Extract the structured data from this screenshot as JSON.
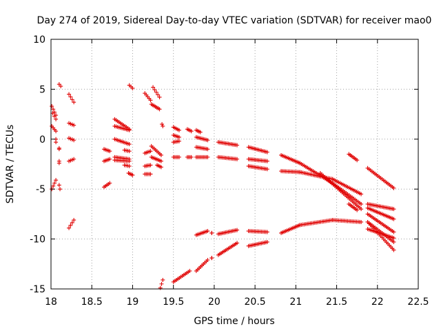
{
  "chart_data": {
    "type": "scatter",
    "title": "Day 274 of 2019, Sidereal Day-to-day VTEC variation (SDTVAR) for receiver mao0",
    "xlabel": "GPS time / hours",
    "ylabel": "SDTVAR / TECUs",
    "xlim": [
      18,
      22.5
    ],
    "ylim": [
      -15,
      10
    ],
    "xticks": [
      "18",
      "18.5",
      "19",
      "19.5",
      "20",
      "20.5",
      "21",
      "21.5",
      "22",
      "22.5"
    ],
    "yticks": [
      "-15",
      "-10",
      "-5",
      "0",
      "5",
      "10"
    ],
    "grid": true,
    "marker": "plus",
    "color": "#e00000",
    "tracks": [
      {
        "x0": 18.01,
        "x1": 18.06,
        "y0": 3.3,
        "y1": 2.4
      },
      {
        "x0": 18.02,
        "x1": 18.06,
        "y0": 2.6,
        "y1": 2.0
      },
      {
        "x0": 18.01,
        "x1": 18.06,
        "y0": 1.3,
        "y1": 0.8
      },
      {
        "x0": 18.01,
        "x1": 18.06,
        "y0": -5.0,
        "y1": -4.1
      },
      {
        "x0": 18.06,
        "x1": 18.06,
        "y0": -0.3,
        "y1": 0.0
      },
      {
        "x0": 18.1,
        "x1": 18.12,
        "y0": 5.5,
        "y1": 5.3
      },
      {
        "x0": 18.1,
        "x1": 18.1,
        "y0": -0.9,
        "y1": -1.0
      },
      {
        "x0": 18.1,
        "x1": 18.1,
        "y0": -2.2,
        "y1": -2.4
      },
      {
        "x0": 18.1,
        "x1": 18.11,
        "y0": -4.6,
        "y1": -5.0
      },
      {
        "x0": 18.22,
        "x1": 18.28,
        "y0": 4.5,
        "y1": 3.7
      },
      {
        "x0": 18.22,
        "x1": 18.28,
        "y0": 1.6,
        "y1": 1.4
      },
      {
        "x0": 18.22,
        "x1": 18.28,
        "y0": 0.1,
        "y1": -0.1
      },
      {
        "x0": 18.22,
        "x1": 18.28,
        "y0": -2.2,
        "y1": -2.0
      },
      {
        "x0": 18.22,
        "x1": 18.28,
        "y0": -8.9,
        "y1": -8.1
      },
      {
        "x0": 18.65,
        "x1": 18.72,
        "y0": -4.8,
        "y1": -4.4
      },
      {
        "x0": 18.65,
        "x1": 18.72,
        "y0": -1.0,
        "y1": -1.2
      },
      {
        "x0": 18.65,
        "x1": 18.72,
        "y0": -2.2,
        "y1": -2.0
      },
      {
        "x0": 18.78,
        "x1": 18.96,
        "y0": 2.0,
        "y1": 1.0
      },
      {
        "x0": 18.78,
        "x1": 18.96,
        "y0": 1.3,
        "y1": 0.9
      },
      {
        "x0": 18.78,
        "x1": 18.96,
        "y0": 0.0,
        "y1": -0.5
      },
      {
        "x0": 18.78,
        "x1": 18.96,
        "y0": -1.8,
        "y1": -2.0
      },
      {
        "x0": 18.78,
        "x1": 18.96,
        "y0": -2.1,
        "y1": -2.2
      },
      {
        "x0": 18.9,
        "x1": 18.96,
        "y0": -1.1,
        "y1": -1.2
      },
      {
        "x0": 18.9,
        "x1": 18.96,
        "y0": -2.6,
        "y1": -2.7
      },
      {
        "x0": 18.95,
        "x1": 19.0,
        "y0": -3.4,
        "y1": -3.6
      },
      {
        "x0": 18.96,
        "x1": 19.0,
        "y0": 5.4,
        "y1": 5.1
      },
      {
        "x0": 19.15,
        "x1": 19.22,
        "y0": 4.6,
        "y1": 3.9
      },
      {
        "x0": 19.15,
        "x1": 19.22,
        "y0": -1.4,
        "y1": -1.2
      },
      {
        "x0": 19.15,
        "x1": 19.22,
        "y0": -2.7,
        "y1": -2.6
      },
      {
        "x0": 19.15,
        "x1": 19.22,
        "y0": -3.5,
        "y1": -3.5
      },
      {
        "x0": 19.25,
        "x1": 19.33,
        "y0": 5.2,
        "y1": 4.2
      },
      {
        "x0": 19.23,
        "x1": 19.33,
        "y0": 3.5,
        "y1": 3.0
      },
      {
        "x0": 19.23,
        "x1": 19.35,
        "y0": -0.7,
        "y1": -1.6
      },
      {
        "x0": 19.23,
        "x1": 19.35,
        "y0": -1.8,
        "y1": -2.2
      },
      {
        "x0": 19.3,
        "x1": 19.35,
        "y0": -2.6,
        "y1": -2.8
      },
      {
        "x0": 19.36,
        "x1": 19.37,
        "y0": 1.5,
        "y1": 1.3
      },
      {
        "x0": 19.34,
        "x1": 19.37,
        "y0": -14.9,
        "y1": -14.1
      },
      {
        "x0": 19.5,
        "x1": 19.57,
        "y0": 1.2,
        "y1": 0.9
      },
      {
        "x0": 19.5,
        "x1": 19.57,
        "y0": 0.4,
        "y1": 0.2
      },
      {
        "x0": 19.5,
        "x1": 19.57,
        "y0": -0.3,
        "y1": -0.2
      },
      {
        "x0": 19.5,
        "x1": 19.57,
        "y0": -1.8,
        "y1": -1.8
      },
      {
        "x0": 19.5,
        "x1": 19.7,
        "y0": -14.3,
        "y1": -13.2
      },
      {
        "x0": 19.67,
        "x1": 19.72,
        "y0": 1.0,
        "y1": 0.8
      },
      {
        "x0": 19.67,
        "x1": 19.72,
        "y0": -1.8,
        "y1": -1.8
      },
      {
        "x0": 19.78,
        "x1": 19.83,
        "y0": 0.9,
        "y1": 0.7
      },
      {
        "x0": 19.78,
        "x1": 19.92,
        "y0": 0.2,
        "y1": -0.1
      },
      {
        "x0": 19.78,
        "x1": 19.92,
        "y0": -0.8,
        "y1": -1.0
      },
      {
        "x0": 19.78,
        "x1": 19.92,
        "y0": -1.8,
        "y1": -1.8
      },
      {
        "x0": 19.78,
        "x1": 19.92,
        "y0": -9.6,
        "y1": -9.2
      },
      {
        "x0": 19.78,
        "x1": 19.92,
        "y0": -13.2,
        "y1": -12.1
      },
      {
        "x0": 19.97,
        "x1": 19.97,
        "y0": -9.4,
        "y1": -9.4
      },
      {
        "x0": 19.97,
        "x1": 19.97,
        "y0": -11.9,
        "y1": -11.9
      },
      {
        "x0": 20.05,
        "x1": 20.28,
        "y0": -0.3,
        "y1": -0.6
      },
      {
        "x0": 20.05,
        "x1": 20.28,
        "y0": -1.8,
        "y1": -2.0
      },
      {
        "x0": 20.05,
        "x1": 20.28,
        "y0": -9.5,
        "y1": -9.1
      },
      {
        "x0": 20.05,
        "x1": 20.28,
        "y0": -11.6,
        "y1": -10.4
      },
      {
        "x0": 20.42,
        "x1": 20.65,
        "y0": -0.8,
        "y1": -1.3
      },
      {
        "x0": 20.42,
        "x1": 20.65,
        "y0": -2.0,
        "y1": -2.2
      },
      {
        "x0": 20.42,
        "x1": 20.65,
        "y0": -2.7,
        "y1": -3.0
      },
      {
        "x0": 20.42,
        "x1": 20.65,
        "y0": -9.2,
        "y1": -9.3
      },
      {
        "x0": 20.42,
        "x1": 20.65,
        "y0": -10.7,
        "y1": -10.3
      },
      {
        "x0": 20.82,
        "x1": 21.05,
        "y0": -1.6,
        "y1": -2.4
      },
      {
        "x0": 20.82,
        "x1": 21.05,
        "y0": -3.2,
        "y1": -3.3
      },
      {
        "x0": 20.82,
        "x1": 21.05,
        "y0": -9.4,
        "y1": -8.6
      },
      {
        "x0": 21.05,
        "x1": 21.45,
        "y0": -2.4,
        "y1": -4.4
      },
      {
        "x0": 21.05,
        "x1": 21.45,
        "y0": -3.3,
        "y1": -4.0
      },
      {
        "x0": 21.05,
        "x1": 21.45,
        "y0": -8.6,
        "y1": -8.1
      },
      {
        "x0": 21.3,
        "x1": 21.8,
        "y0": -3.4,
        "y1": -7.0
      },
      {
        "x0": 21.45,
        "x1": 21.8,
        "y0": -4.4,
        "y1": -6.5
      },
      {
        "x0": 21.45,
        "x1": 21.8,
        "y0": -4.0,
        "y1": -5.5
      },
      {
        "x0": 21.45,
        "x1": 21.8,
        "y0": -8.1,
        "y1": -8.3
      },
      {
        "x0": 21.65,
        "x1": 21.75,
        "y0": -1.5,
        "y1": -2.1
      },
      {
        "x0": 21.65,
        "x1": 21.75,
        "y0": -6.5,
        "y1": -7.1
      },
      {
        "x0": 21.88,
        "x1": 22.2,
        "y0": -2.9,
        "y1": -4.9
      },
      {
        "x0": 21.88,
        "x1": 22.2,
        "y0": -6.5,
        "y1": -7.0
      },
      {
        "x0": 21.88,
        "x1": 22.2,
        "y0": -6.9,
        "y1": -8.0
      },
      {
        "x0": 21.88,
        "x1": 22.2,
        "y0": -7.5,
        "y1": -9.3
      },
      {
        "x0": 21.88,
        "x1": 22.2,
        "y0": -8.3,
        "y1": -10.3
      },
      {
        "x0": 21.88,
        "x1": 22.2,
        "y0": -8.3,
        "y1": -11.1
      },
      {
        "x0": 21.88,
        "x1": 22.2,
        "y0": -9.0,
        "y1": -9.9
      }
    ]
  }
}
